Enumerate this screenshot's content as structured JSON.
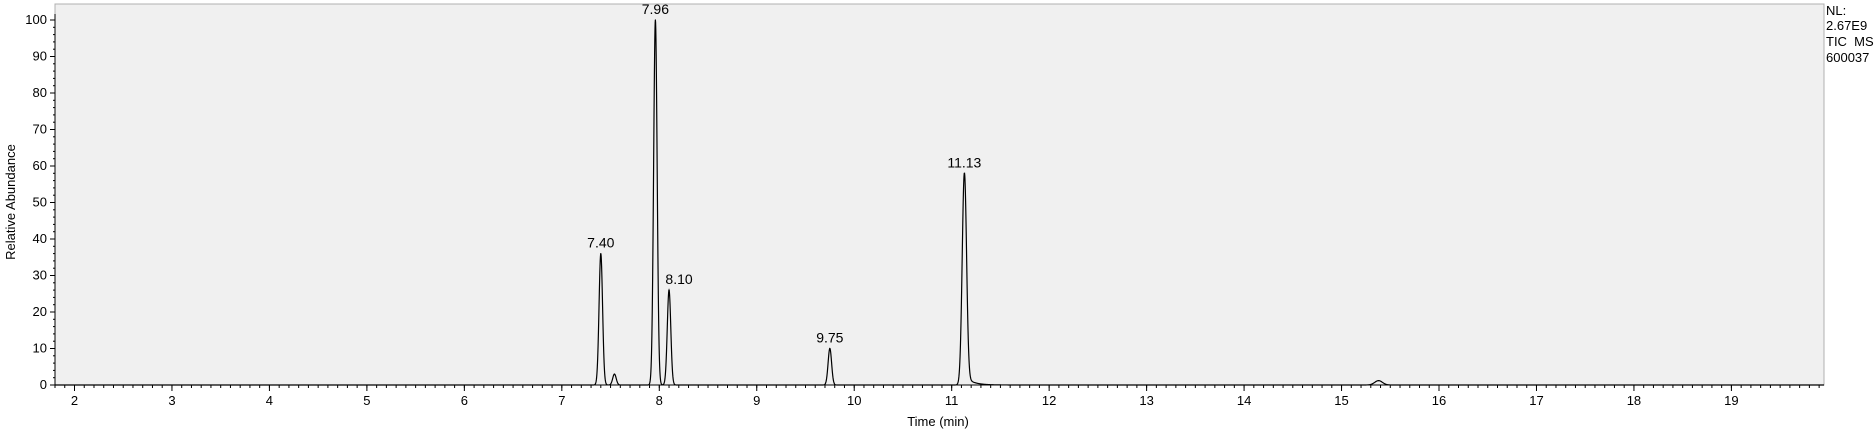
{
  "chart_data": {
    "type": "line",
    "xlabel": "Time (min)",
    "ylabel": "Relative Abundance",
    "xlim": [
      1.8,
      19.95
    ],
    "ylim": [
      0,
      100
    ],
    "x_ticks": [
      "2",
      "3",
      "4",
      "5",
      "6",
      "7",
      "8",
      "9",
      "10",
      "11",
      "12",
      "13",
      "14",
      "15",
      "16",
      "17",
      "18",
      "19"
    ],
    "y_ticks": [
      "0",
      "10",
      "20",
      "30",
      "40",
      "50",
      "60",
      "70",
      "80",
      "90",
      "100"
    ],
    "grid": false,
    "line_color": "#000000",
    "plot_background": "#f0f0f0",
    "info": [
      "NL:",
      "2.67E9",
      "TIC  MS",
      "600037"
    ],
    "peaks": [
      {
        "x": 7.4,
        "y": 36,
        "label": "7.40"
      },
      {
        "x": 7.54,
        "y": 3,
        "label": ""
      },
      {
        "x": 7.96,
        "y": 100,
        "label": "7.96"
      },
      {
        "x": 8.1,
        "y": 26,
        "label": "8.10"
      },
      {
        "x": 9.75,
        "y": 10,
        "label": "9.75"
      },
      {
        "x": 11.13,
        "y": 58,
        "label": "11.13"
      },
      {
        "x": 15.38,
        "y": 1.2,
        "label": ""
      }
    ]
  }
}
